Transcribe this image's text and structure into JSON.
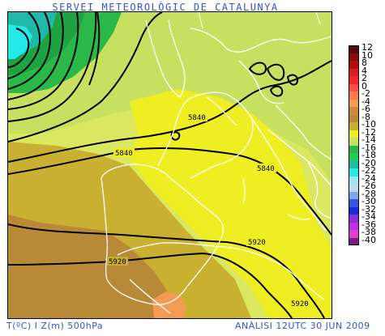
{
  "header": {
    "title": "SERVEI METEOROLÒGIC DE CATALUNYA"
  },
  "footer": {
    "left": "T(ºC) I Z(m) 500hPa",
    "right": "ANÀLISI 12UTC 30 JUN 2009"
  },
  "contour_labels": {
    "a": "5840",
    "b": "5840",
    "c": "5840",
    "d": "5920",
    "e": "5920",
    "f": "5920"
  },
  "legend": {
    "items": [
      {
        "label": "12",
        "color": "#5a0a0a"
      },
      {
        "label": "10",
        "color": "#8b0a0a"
      },
      {
        "label": "8",
        "color": "#b40a0a"
      },
      {
        "label": "4",
        "color": "#d81e1e"
      },
      {
        "label": "2",
        "color": "#f02828"
      },
      {
        "label": "0",
        "color": "#ff4a4a"
      },
      {
        "label": "-2",
        "color": "#ff7a4a"
      },
      {
        "label": "-4",
        "color": "#f59a55"
      },
      {
        "label": "-6",
        "color": "#cc8a3c"
      },
      {
        "label": "-8",
        "color": "#b88a38"
      },
      {
        "label": "-10",
        "color": "#c9b030"
      },
      {
        "label": "-12",
        "color": "#eeee22"
      },
      {
        "label": "-14",
        "color": "#c8e060"
      },
      {
        "label": "-16",
        "color": "#2ab848"
      },
      {
        "label": "-18",
        "color": "#22cc55"
      },
      {
        "label": "-20",
        "color": "#20b8a8"
      },
      {
        "label": "-22",
        "color": "#22e8e8"
      },
      {
        "label": "-24",
        "color": "#9ae8f0"
      },
      {
        "label": "-26",
        "color": "#c0d8f0"
      },
      {
        "label": "-28",
        "color": "#7aa8e8"
      },
      {
        "label": "-30",
        "color": "#3a55e0"
      },
      {
        "label": "-32",
        "color": "#1a2ad8"
      },
      {
        "label": "-34",
        "color": "#8a30d8"
      },
      {
        "label": "-36",
        "color": "#c030e0"
      },
      {
        "label": "-38",
        "color": "#e040d0"
      },
      {
        "label": "-40",
        "color": "#7a1a8a"
      }
    ]
  }
}
